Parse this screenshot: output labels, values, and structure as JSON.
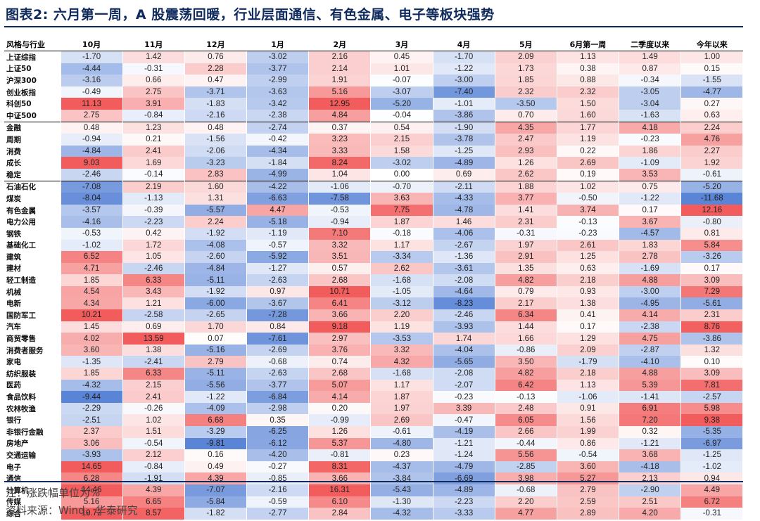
{
  "title": "图表2:  六月第一周，A 股震荡回暖，行业层面通信、有色金属、电子等板块强势",
  "note": "注：涨跌幅单位为%",
  "source": "资料来源：Wind，华泰研究",
  "colors": {
    "positive_max": "#f25c5c",
    "negative_max": "#5a84d6",
    "neutral": "#ffffff"
  },
  "chart_data": {
    "type": "table",
    "columns": [
      "风格与行业",
      "10月",
      "11月",
      "12月",
      "1月",
      "2月",
      "3月",
      "4月",
      "5月",
      "6月第一周",
      "二季度以来",
      "今年以来"
    ],
    "group_breaks_after": [
      5,
      10
    ],
    "rows": [
      {
        "label": "上证综指",
        "values": [
          "-1.70",
          "1.42",
          "0.76",
          "-3.02",
          "2.16",
          "0.45",
          "-1.70",
          "2.09",
          "1.13",
          "1.49",
          "1.00"
        ]
      },
      {
        "label": "上证50",
        "values": [
          "-4.44",
          "-0.31",
          "2.28",
          "-3.77",
          "2.14",
          "1.01",
          "-1.22",
          "1.73",
          "0.38",
          "0.87",
          "0.15"
        ]
      },
      {
        "label": "沪深300",
        "values": [
          "-3.16",
          "0.66",
          "0.47",
          "-2.99",
          "1.91",
          "-0.07",
          "-3.00",
          "1.85",
          "0.88",
          "-0.34",
          "-1.55"
        ]
      },
      {
        "label": "创业板指",
        "values": [
          "-0.49",
          "2.75",
          "-3.71",
          "-3.63",
          "5.16",
          "-3.07",
          "-7.40",
          "2.32",
          "2.32",
          "-3.05",
          "-4.77"
        ]
      },
      {
        "label": "科创50",
        "values": [
          "11.13",
          "3.91",
          "-1.83",
          "-3.42",
          "12.95",
          "-5.20",
          "-1.01",
          "-3.50",
          "1.50",
          "-3.04",
          "0.27"
        ]
      },
      {
        "label": "中证500",
        "values": [
          "2.75",
          "-0.84",
          "-2.16",
          "-2.38",
          "4.84",
          "-0.04",
          "-3.86",
          "0.70",
          "1.60",
          "-1.63",
          "0.63"
        ]
      },
      {
        "label": "金融",
        "values": [
          "0.48",
          "1.23",
          "0.48",
          "-2.74",
          "0.37",
          "0.54",
          "-1.90",
          "4.35",
          "1.77",
          "4.18",
          "2.24"
        ]
      },
      {
        "label": "周期",
        "values": [
          "-0.94",
          "0.21",
          "-1.56",
          "-0.42",
          "3.23",
          "2.15",
          "-3.78",
          "2.47",
          "1.19",
          "-0.23",
          "4.76"
        ]
      },
      {
        "label": "消费",
        "values": [
          "-4.84",
          "2.41",
          "-2.06",
          "-4.34",
          "3.33",
          "1.58",
          "-1.25",
          "2.93",
          "0.22",
          "1.86",
          "2.27"
        ]
      },
      {
        "label": "成长",
        "values": [
          "9.03",
          "1.69",
          "-3.23",
          "-1.84",
          "8.24",
          "-3.02",
          "-4.89",
          "1.26",
          "2.69",
          "-1.09",
          "1.92"
        ]
      },
      {
        "label": "稳定",
        "values": [
          "-2.46",
          "-0.14",
          "2.83",
          "-4.99",
          "1.04",
          "0.00",
          "0.69",
          "2.62",
          "0.19",
          "3.53",
          "-0.61"
        ]
      },
      {
        "label": "石油石化",
        "values": [
          "-7.08",
          "2.19",
          "1.60",
          "-4.22",
          "-1.06",
          "-0.70",
          "-2.11",
          "1.88",
          "1.02",
          "0.75",
          "-5.20"
        ]
      },
      {
        "label": "煤炭",
        "values": [
          "-8.04",
          "-1.13",
          "1.31",
          "-6.63",
          "-7.58",
          "3.63",
          "-4.33",
          "3.77",
          "-0.50",
          "-1.22",
          "-11.68"
        ]
      },
      {
        "label": "有色金属",
        "values": [
          "-3.57",
          "-0.39",
          "-5.57",
          "4.47",
          "-0.53",
          "7.75",
          "-4.78",
          "1.41",
          "3.74",
          "0.17",
          "12.16"
        ]
      },
      {
        "label": "电力公用",
        "values": [
          "-4.16",
          "-2.23",
          "2.24",
          "-5.18",
          "-0.94",
          "1.87",
          "1.46",
          "2.31",
          "-0.13",
          "3.67",
          "-0.80"
        ]
      },
      {
        "label": "钢铁",
        "values": [
          "-0.53",
          "0.42",
          "-1.92",
          "-1.19",
          "7.10",
          "-0.18",
          "-4.06",
          "-0.31",
          "-0.23",
          "-4.57",
          "0.81"
        ]
      },
      {
        "label": "基础化工",
        "values": [
          "-1.02",
          "1.72",
          "-4.08",
          "-0.57",
          "3.32",
          "1.17",
          "-2.67",
          "1.97",
          "2.61",
          "1.83",
          "5.84"
        ]
      },
      {
        "label": "建筑",
        "values": [
          "6.52",
          "1.05",
          "-2.60",
          "-5.92",
          "3.51",
          "-3.34",
          "-1.36",
          "2.91",
          "1.25",
          "2.78",
          "-3.26"
        ]
      },
      {
        "label": "建材",
        "values": [
          "4.71",
          "-2.46",
          "-4.84",
          "-1.27",
          "0.57",
          "2.62",
          "-3.61",
          "1.35",
          "0.63",
          "-1.69",
          "0.17"
        ]
      },
      {
        "label": "轻工制造",
        "values": [
          "1.85",
          "6.33",
          "-5.11",
          "-2.63",
          "2.68",
          "-1.68",
          "-2.08",
          "4.82",
          "2.18",
          "4.88",
          "3.09"
        ]
      },
      {
        "label": "机械",
        "values": [
          "4.54",
          "3.43",
          "-1.92",
          "0.97",
          "10.71",
          "-1.05",
          "-4.64",
          "0.79",
          "0.93",
          "-3.00",
          "7.29"
        ]
      },
      {
        "label": "电新",
        "values": [
          "4.34",
          "1.21",
          "-6.00",
          "-3.67",
          "6.41",
          "-3.12",
          "-8.23",
          "2.17",
          "1.38",
          "-4.95",
          "-5.61"
        ]
      },
      {
        "label": "国防军工",
        "values": [
          "10.21",
          "-2.58",
          "-2.65",
          "-7.28",
          "3.66",
          "2.20",
          "-2.46",
          "6.34",
          "0.41",
          "4.14",
          "2.31"
        ]
      },
      {
        "label": "汽车",
        "values": [
          "1.45",
          "0.69",
          "1.70",
          "0.84",
          "9.18",
          "1.19",
          "-3.93",
          "1.44",
          "0.17",
          "-2.38",
          "8.76"
        ]
      },
      {
        "label": "商贸零售",
        "values": [
          "4.02",
          "13.59",
          "0.07",
          "-7.61",
          "2.97",
          "-3.53",
          "1.74",
          "1.66",
          "1.29",
          "4.75",
          "-3.86"
        ]
      },
      {
        "label": "消费者服务",
        "values": [
          "3.60",
          "1.38",
          "-5.16",
          "-2.69",
          "3.76",
          "3.32",
          "-4.04",
          "-0.86",
          "2.09",
          "-2.87",
          "1.32"
        ]
      },
      {
        "label": "家电",
        "values": [
          "-1.35",
          "-2.41",
          "2.79",
          "-0.68",
          "0.74",
          "4.32",
          "-5.65",
          "3.50",
          "-1.79",
          "-4.10",
          "0.10"
        ]
      },
      {
        "label": "纺织服装",
        "values": [
          "1.85",
          "6.33",
          "-5.11",
          "-2.63",
          "2.68",
          "-1.68",
          "-2.08",
          "4.82",
          "2.18",
          "4.88",
          "3.09"
        ]
      },
      {
        "label": "医药",
        "values": [
          "-4.32",
          "2.15",
          "-5.56",
          "-3.77",
          "5.07",
          "1.17",
          "-2.07",
          "6.42",
          "1.13",
          "5.39",
          "7.81"
        ]
      },
      {
        "label": "食品饮料",
        "values": [
          "-9.44",
          "2.41",
          "-1.22",
          "-6.84",
          "4.14",
          "1.87",
          "-0.23",
          "-0.13",
          "-1.06",
          "-1.41",
          "-2.57"
        ]
      },
      {
        "label": "农林牧渔",
        "values": [
          "-2.29",
          "-0.26",
          "-4.09",
          "-2.98",
          "0.20",
          "1.97",
          "3.39",
          "2.48",
          "0.91",
          "6.91",
          "5.98"
        ]
      },
      {
        "label": "银行",
        "values": [
          "-2.51",
          "1.02",
          "6.68",
          "0.35",
          "-0.99",
          "2.69",
          "-0.47",
          "6.05",
          "1.56",
          "7.20",
          "9.38"
        ]
      },
      {
        "label": "非银行金融",
        "values": [
          "2.37",
          "1.51",
          "-3.29",
          "-6.25",
          "1.26",
          "-0.61",
          "-4.19",
          "2.66",
          "1.99",
          "0.32",
          "-5.35"
        ]
      },
      {
        "label": "房地产",
        "values": [
          "3.06",
          "-0.54",
          "-9.81",
          "-6.12",
          "5.37",
          "-4.80",
          "-1.21",
          "-0.44",
          "0.86",
          "-1.21",
          "-6.97"
        ]
      },
      {
        "label": "交通运输",
        "values": [
          "-3.93",
          "2.12",
          "0.16",
          "-4.20",
          "-0.81",
          "0.23",
          "-1.24",
          "5.56",
          "-0.54",
          "3.68",
          "-1.25"
        ]
      },
      {
        "label": "电子",
        "values": [
          "14.65",
          "-0.84",
          "0.49",
          "-0.27",
          "8.31",
          "-4.37",
          "-4.79",
          "-2.85",
          "3.60",
          "-4.18",
          "-1.02"
        ]
      },
      {
        "label": "通信",
        "values": [
          "6.28",
          "-1.91",
          "4.39",
          "-0.85",
          "3.66",
          "-3.84",
          "-6.69",
          "3.98",
          "5.27",
          "2.13",
          "0.94"
        ]
      },
      {
        "label": "计算机",
        "values": [
          "14.46",
          "4.39",
          "-7.07",
          "-2.16",
          "16.31",
          "-5.43",
          "-4.89",
          "-0.68",
          "2.79",
          "-2.90",
          "4.49"
        ]
      },
      {
        "label": "传媒",
        "values": [
          "5.16",
          "6.65",
          "-5.84",
          "-0.59",
          "6.10",
          "-1.30",
          "-2.23",
          "2.20",
          "2.59",
          "2.51",
          "6.72"
        ]
      },
      {
        "label": "综合",
        "values": [
          "10.72",
          "8.57",
          "-1.82",
          "-2.77",
          "2.84",
          "-4.32",
          "-3.33",
          "4.77",
          "2.89",
          "4.20",
          "-0.31"
        ]
      }
    ]
  }
}
